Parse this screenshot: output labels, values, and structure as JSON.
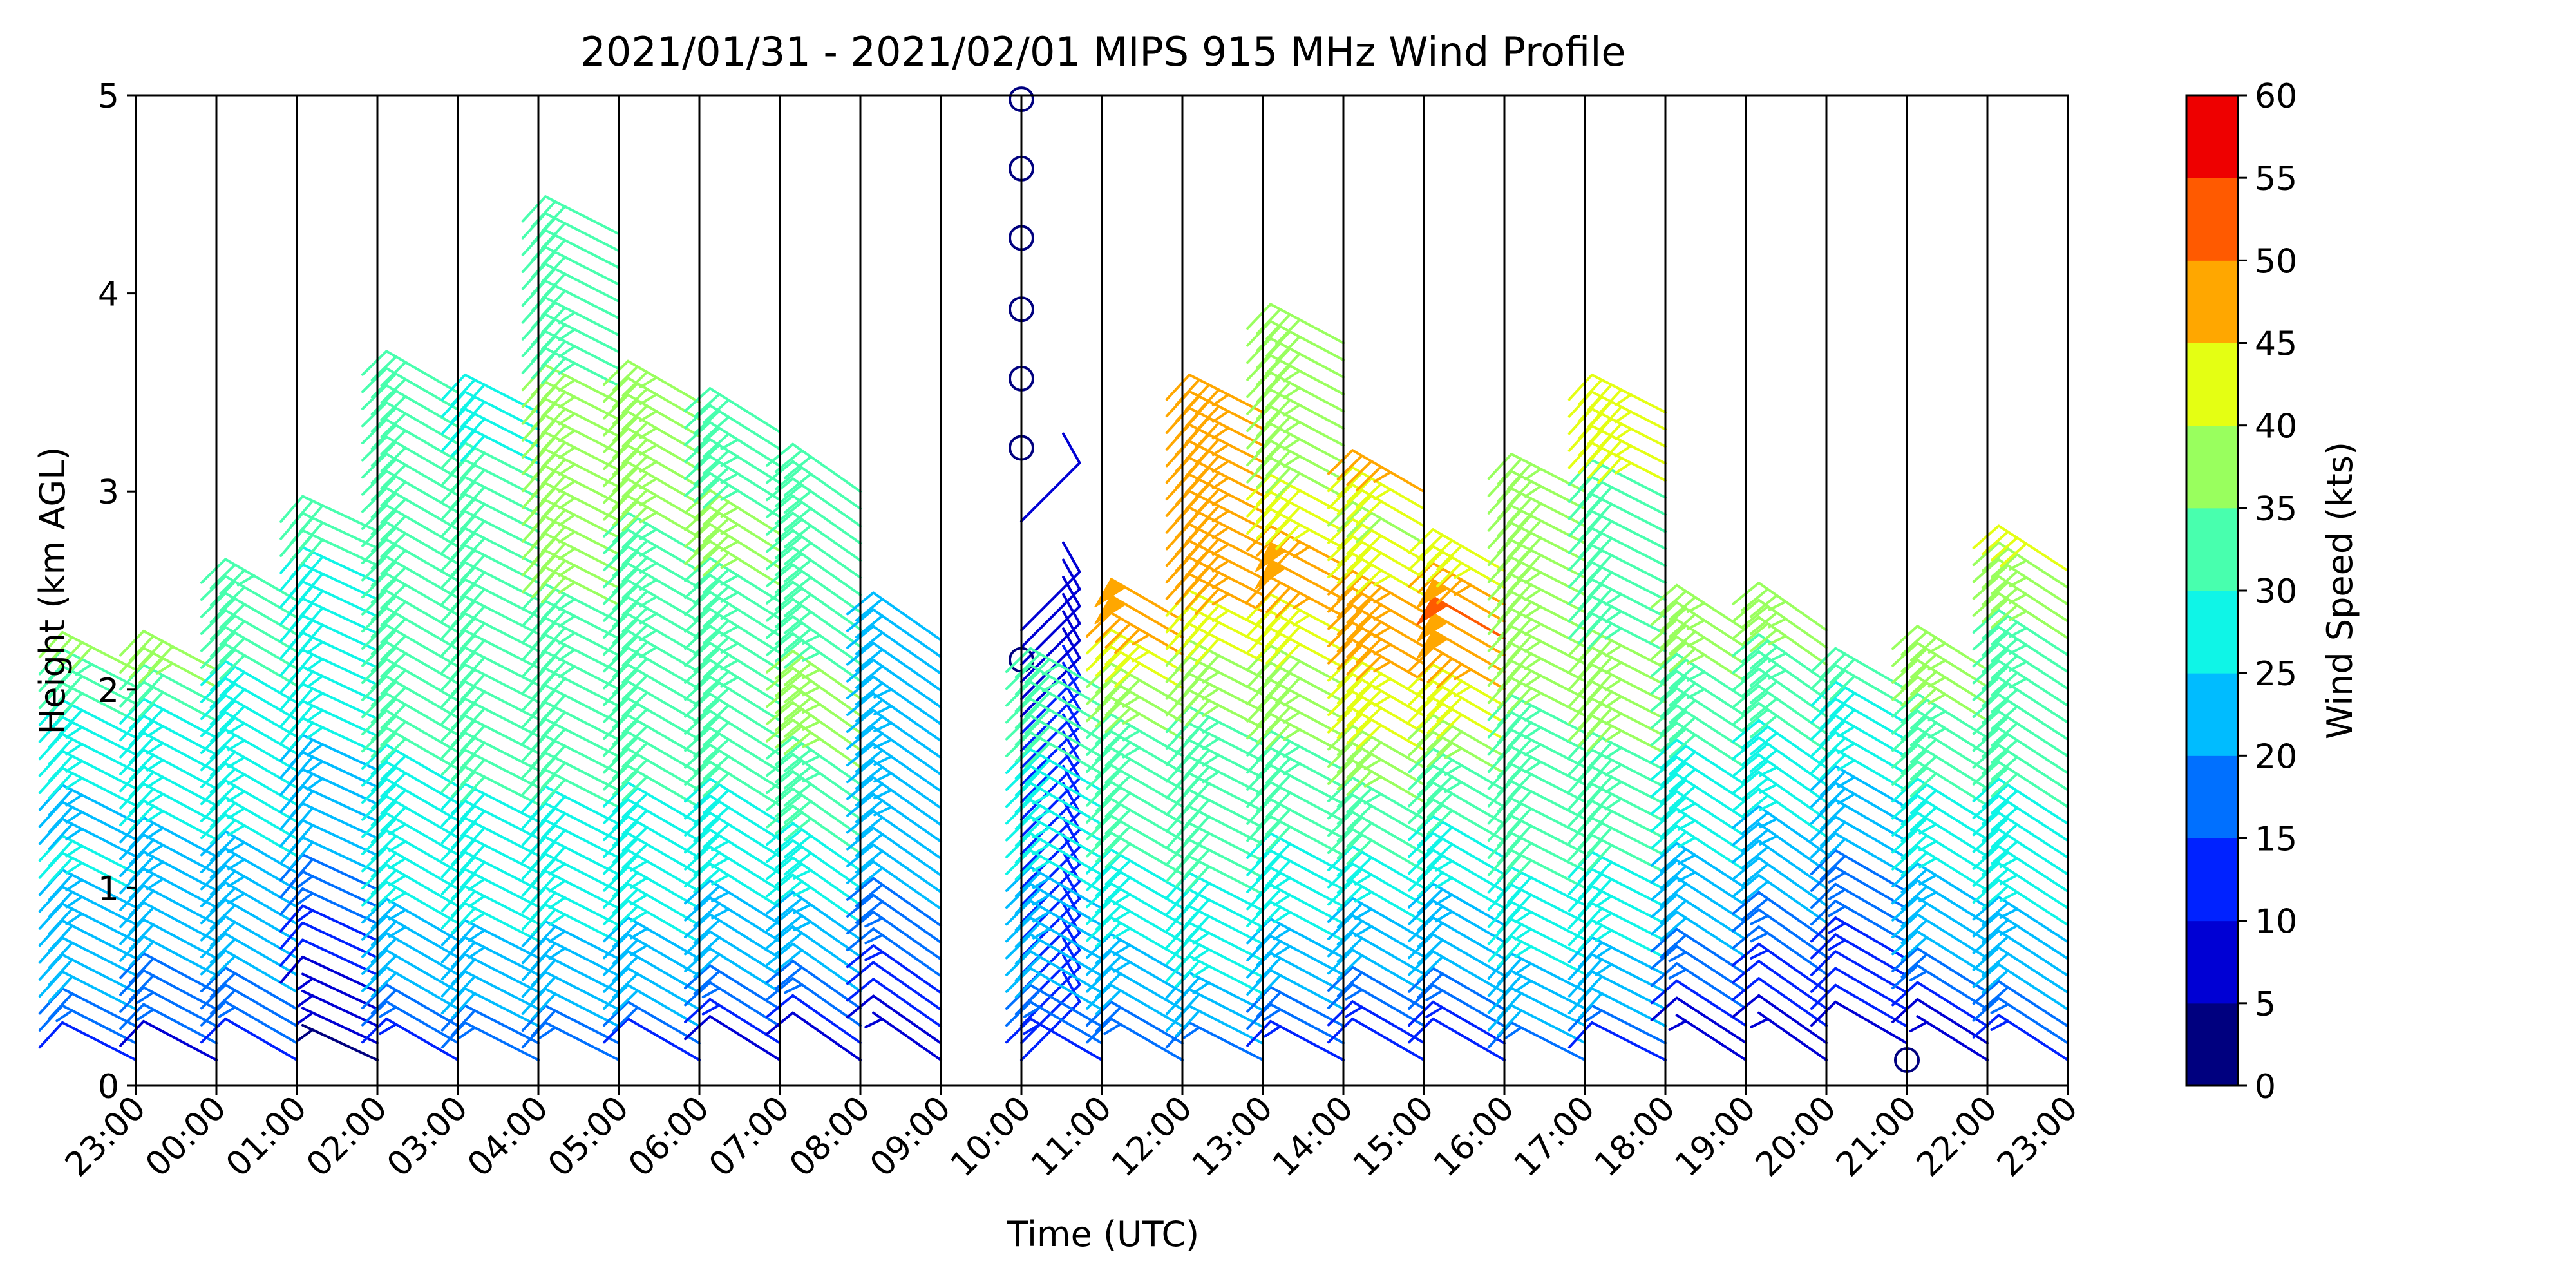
{
  "chart_data": {
    "type": "wind_barbs",
    "title": "2021/01/31 - 2021/02/01 MIPS 915 MHz Wind Profile",
    "xlabel": "Time (UTC)",
    "ylabel": "Height (km AGL)",
    "x_tick_labels": [
      "23:00",
      "00:00",
      "01:00",
      "02:00",
      "03:00",
      "04:00",
      "05:00",
      "06:00",
      "07:00",
      "08:00",
      "09:00",
      "10:00",
      "11:00",
      "12:00",
      "13:00",
      "14:00",
      "15:00",
      "16:00",
      "17:00",
      "18:00",
      "19:00",
      "20:00",
      "21:00",
      "22:00",
      "23:00"
    ],
    "y_ticks": [
      0,
      1,
      2,
      3,
      4,
      5
    ],
    "ylim": [
      0,
      5
    ],
    "grid": "vertical lines at each hour",
    "colorbar": {
      "label": "Wind Speed (kts)",
      "ticks": [
        0,
        5,
        10,
        15,
        20,
        25,
        30,
        35,
        40,
        45,
        50,
        55,
        60
      ],
      "colors": [
        "#00007f",
        "#0000d4",
        "#0022ff",
        "#0070ff",
        "#00bcff",
        "#0ff5e7",
        "#48ffae",
        "#99ff5e",
        "#e4ff13",
        "#ffa700",
        "#ff5a00",
        "#ee0000",
        "#7f0000"
      ]
    },
    "columns": [
      {
        "time": "23:00",
        "top_km": 2.1,
        "dir_deg": 297,
        "speeds": [
          10,
          15,
          18,
          20,
          20,
          22,
          22,
          23,
          24,
          24,
          25,
          25,
          24,
          24,
          24,
          25,
          26,
          26,
          26,
          28,
          30,
          30,
          33,
          38
        ],
        "extra": []
      },
      {
        "time": "00:00",
        "top_km": 2.1,
        "dir_deg": 298,
        "speeds": [
          8,
          15,
          17,
          18,
          19,
          20,
          21,
          22,
          22,
          23,
          23,
          24,
          24,
          25,
          25,
          25,
          26,
          26,
          27,
          28,
          30,
          32,
          36,
          38
        ],
        "extra": []
      },
      {
        "time": "01:00",
        "top_km": 2.45,
        "dir_deg": 300,
        "speeds": [
          11,
          16,
          18,
          19,
          20,
          21,
          22,
          22,
          23,
          23,
          24,
          24,
          25,
          25,
          25,
          26,
          26,
          27,
          27,
          28,
          28,
          29,
          30,
          30,
          31,
          31,
          32,
          33
        ],
        "extra": []
      },
      {
        "time": "02:00",
        "top_km": 2.8,
        "dir_deg": 295,
        "speeds": [
          4,
          5,
          7,
          6,
          8,
          10,
          12,
          14,
          16,
          17,
          18,
          20,
          20,
          22,
          22,
          23,
          24,
          24,
          25,
          25,
          26,
          26,
          27,
          27,
          28,
          28,
          28,
          29,
          29,
          30,
          30,
          30
        ],
        "extra": []
      },
      {
        "time": "03:00",
        "top_km": 3.5,
        "dir_deg": 300,
        "speeds": [
          13,
          17,
          19,
          20,
          21,
          22,
          23,
          24,
          25,
          26,
          26,
          27,
          27,
          28,
          28,
          29,
          29,
          30,
          30,
          30,
          31,
          31,
          31,
          32,
          32,
          32,
          32,
          32,
          32,
          32,
          32,
          32,
          32,
          32,
          31,
          31,
          31,
          31,
          30,
          30
        ],
        "extra": []
      },
      {
        "time": "04:00",
        "top_km": 3.4,
        "dir_deg": 297,
        "speeds": [
          15,
          18,
          20,
          21,
          22,
          23,
          24,
          25,
          26,
          27,
          28,
          28,
          28,
          29,
          29,
          30,
          30,
          30,
          31,
          31,
          31,
          32,
          32,
          32,
          32,
          32,
          32,
          32,
          32,
          32,
          31,
          31,
          30,
          30,
          30,
          29,
          29,
          29,
          28
        ],
        "extra": []
      },
      {
        "time": "05:00",
        "top_km": 4.3,
        "dir_deg": 297,
        "speeds": [
          15,
          18,
          20,
          21,
          22,
          23,
          24,
          25,
          26,
          27,
          27,
          28,
          28,
          29,
          29,
          30,
          30,
          31,
          31,
          32,
          32,
          32,
          33,
          33,
          33,
          34,
          34,
          35,
          35,
          36,
          36,
          36,
          37,
          37,
          37,
          37,
          36,
          36,
          35,
          35,
          34,
          34,
          33,
          33,
          32,
          32,
          31,
          31,
          30,
          30
        ],
        "extra": []
      },
      {
        "time": "06:00",
        "top_km": 3.45,
        "dir_deg": 300,
        "speeds": [
          10,
          18,
          20,
          21,
          22,
          23,
          24,
          25,
          26,
          27,
          27,
          28,
          28,
          29,
          29,
          30,
          30,
          31,
          31,
          31,
          32,
          32,
          32,
          33,
          33,
          33,
          33,
          34,
          34,
          34,
          34,
          35,
          35,
          35,
          35,
          36,
          36,
          36,
          36,
          35
        ],
        "extra": []
      },
      {
        "time": "07:00",
        "top_km": 3.3,
        "dir_deg": 302,
        "speeds": [
          8,
          14,
          16,
          18,
          20,
          21,
          22,
          23,
          24,
          25,
          26,
          27,
          28,
          29,
          29,
          30,
          30,
          31,
          31,
          32,
          32,
          33,
          33,
          33,
          34,
          34,
          34,
          34,
          35,
          35,
          35,
          35,
          34,
          34,
          33,
          33,
          32,
          32
        ],
        "extra": []
      },
      {
        "time": "08:00",
        "top_km": 3.0,
        "dir_deg": 305,
        "speeds": [
          8,
          12,
          16,
          18,
          20,
          22,
          23,
          24,
          25,
          27,
          28,
          29,
          30,
          31,
          32,
          33,
          34,
          35,
          36,
          36,
          36,
          35,
          34,
          33,
          32,
          32,
          32,
          32,
          31,
          31,
          30,
          30,
          30,
          30
        ],
        "extra": []
      },
      {
        "time": "09:00",
        "top_km": 2.25,
        "dir_deg": 305,
        "speeds": [
          6,
          8,
          10,
          12,
          14,
          15,
          16,
          18,
          19,
          20,
          21,
          22,
          22,
          23,
          23,
          24,
          24,
          24,
          24,
          23,
          23,
          22,
          22,
          22,
          21,
          21
        ],
        "extra": []
      },
      {
        "time": "10:00",
        "top_km": 2.3,
        "dir_deg": 45,
        "speeds": [
          10,
          10,
          10,
          10,
          10,
          10,
          10,
          12,
          12,
          12,
          12,
          12,
          12,
          10,
          10,
          10,
          10,
          10,
          10,
          10,
          8,
          8,
          8,
          8,
          8,
          8
        ],
        "extra": [
          {
            "h": 2.15,
            "v": "calm"
          },
          {
            "h": 2.85,
            "v": 8
          },
          {
            "h": 3.22,
            "v": "calm"
          },
          {
            "h": 3.57,
            "v": "calm"
          },
          {
            "h": 3.92,
            "v": "calm"
          },
          {
            "h": 4.28,
            "v": "calm"
          },
          {
            "h": 4.63,
            "v": "calm"
          },
          {
            "h": 4.98,
            "v": "calm"
          }
        ]
      },
      {
        "time": "11:00",
        "top_km": 2.0,
        "dir_deg": 300,
        "speeds": [
          14,
          17,
          19,
          20,
          21,
          22,
          23,
          23,
          24,
          24,
          25,
          25,
          26,
          26,
          27,
          28,
          29,
          30,
          31,
          32,
          32,
          33,
          33
        ],
        "extra": []
      },
      {
        "time": "12:00",
        "top_km": 2.35,
        "dir_deg": 300,
        "speeds": [
          16,
          19,
          21,
          22,
          23,
          24,
          25,
          26,
          27,
          28,
          29,
          30,
          30,
          31,
          31,
          32,
          32,
          33,
          34,
          35,
          36,
          38,
          40,
          44,
          46,
          48,
          48
        ],
        "extra": []
      },
      {
        "time": "13:00",
        "top_km": 3.4,
        "dir_deg": 297,
        "speeds": [
          16,
          20,
          22,
          24,
          25,
          26,
          27,
          28,
          29,
          29,
          30,
          30,
          31,
          31,
          32,
          32,
          33,
          33,
          34,
          34,
          35,
          36,
          37,
          38,
          40,
          42,
          44,
          45,
          45,
          46,
          46,
          46,
          46,
          46,
          46,
          46,
          46,
          46,
          46,
          46
        ],
        "extra": []
      },
      {
        "time": "14:00",
        "top_km": 3.75,
        "dir_deg": 298,
        "speeds": [
          13,
          17,
          19,
          21,
          22,
          23,
          24,
          25,
          26,
          27,
          28,
          29,
          30,
          30,
          31,
          32,
          33,
          34,
          35,
          36,
          37,
          38,
          39,
          40,
          42,
          44,
          46,
          48,
          48,
          46,
          44,
          42,
          40,
          38,
          37,
          36,
          36,
          36,
          37,
          37,
          38,
          38,
          38
        ],
        "extra": []
      },
      {
        "time": "15:00",
        "top_km": 3.0,
        "dir_deg": 300,
        "speeds": [
          10,
          14,
          17,
          19,
          20,
          22,
          23,
          24,
          26,
          27,
          29,
          30,
          31,
          32,
          34,
          35,
          37,
          38,
          40,
          42,
          43,
          44,
          45,
          46,
          46,
          46,
          46,
          44,
          42,
          40,
          38,
          42,
          44,
          46
        ],
        "extra": []
      },
      {
        "time": "16:00",
        "top_km": 2.6,
        "dir_deg": 300,
        "speeds": [
          10,
          13,
          15,
          18,
          20,
          21,
          22,
          23,
          24,
          26,
          27,
          28,
          29,
          30,
          31,
          33,
          34,
          36,
          38,
          40,
          42,
          44,
          46,
          48,
          48,
          50,
          48,
          46,
          44,
          40
        ],
        "extra": []
      },
      {
        "time": "17:00",
        "top_km": 3.0,
        "dir_deg": 297,
        "speeds": [
          16,
          20,
          22,
          23,
          24,
          25,
          26,
          27,
          28,
          29,
          30,
          30,
          31,
          31,
          32,
          32,
          33,
          33,
          34,
          34,
          35,
          35,
          36,
          36,
          36,
          37,
          37,
          37,
          38,
          38,
          38,
          38,
          37,
          37
        ],
        "extra": []
      },
      {
        "time": "18:00",
        "top_km": 3.4,
        "dir_deg": 297,
        "speeds": [
          12,
          17,
          20,
          22,
          23,
          24,
          25,
          26,
          27,
          28,
          29,
          30,
          31,
          32,
          33,
          33,
          34,
          34,
          35,
          35,
          36,
          36,
          36,
          35,
          34,
          34,
          33,
          32,
          32,
          32,
          31,
          30,
          30,
          30,
          44,
          44,
          44,
          44,
          44
        ],
        "extra": []
      },
      {
        "time": "19:00",
        "top_km": 2.3,
        "dir_deg": 303,
        "speeds": [
          6,
          8,
          12,
          15,
          17,
          19,
          20,
          21,
          22,
          23,
          24,
          25,
          26,
          27,
          28,
          28,
          29,
          30,
          31,
          32,
          33,
          34,
          35,
          35,
          36,
          36
        ],
        "extra": []
      },
      {
        "time": "20:00",
        "top_km": 2.3,
        "dir_deg": 305,
        "speeds": [
          5,
          8,
          10,
          12,
          14,
          15,
          16,
          18,
          20,
          21,
          22,
          23,
          24,
          25,
          26,
          27,
          28,
          29,
          30,
          31,
          32,
          33,
          34,
          35,
          36,
          36
        ],
        "extra": []
      },
      {
        "time": "21:00",
        "top_km": 2.0,
        "dir_deg": 300,
        "speeds": [
          0,
          9,
          10,
          11,
          12,
          13,
          14,
          15,
          16,
          17,
          18,
          20,
          21,
          22,
          23,
          24,
          25,
          26,
          27,
          28,
          29,
          30,
          30
        ],
        "extra": []
      },
      {
        "time": "22:00",
        "top_km": 2.1,
        "dir_deg": 302,
        "speeds": [
          6,
          8,
          12,
          15,
          18,
          20,
          21,
          22,
          23,
          24,
          25,
          26,
          27,
          28,
          29,
          30,
          31,
          32,
          33,
          34,
          35,
          36,
          36,
          36
        ],
        "extra": []
      },
      {
        "time": "23:00",
        "top_km": 2.6,
        "dir_deg": 303,
        "speeds": [
          14,
          17,
          19,
          20,
          21,
          22,
          23,
          24,
          25,
          26,
          27,
          28,
          28,
          29,
          29,
          30,
          30,
          31,
          31,
          32,
          32,
          33,
          33,
          34,
          34,
          35,
          35,
          36,
          36,
          42
        ],
        "extra": []
      }
    ]
  }
}
